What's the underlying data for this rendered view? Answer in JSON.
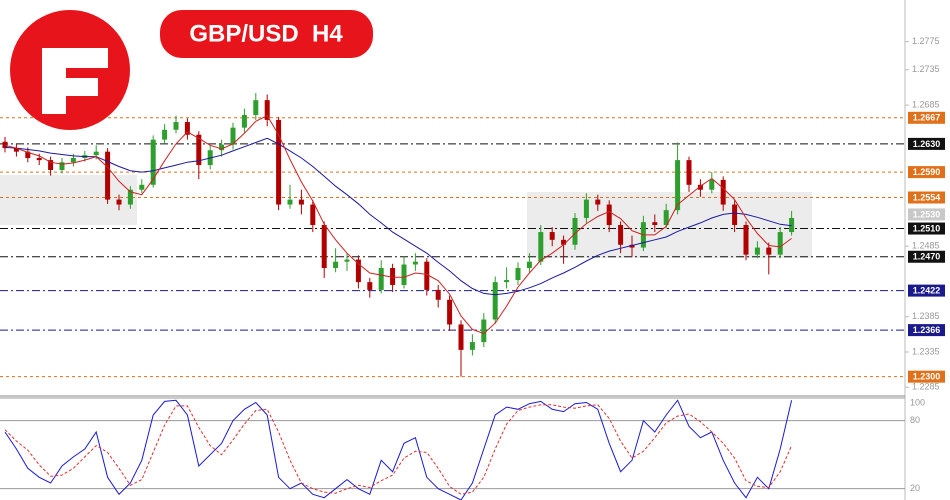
{
  "chart_data": [
    {
      "type": "candlestick",
      "title": "GBP/USD  H4",
      "up_color": "#2e9e2e",
      "down_color": "#b00000",
      "ylim": [
        1.2274,
        1.2834
      ],
      "yticks": [
        1.2775,
        1.2735,
        1.2685,
        1.2485,
        1.2385,
        1.2335,
        1.2285
      ],
      "candles": [
        [
          1.2633,
          1.264,
          1.2618,
          1.2624
        ],
        [
          1.2624,
          1.263,
          1.2612,
          1.2619
        ],
        [
          1.2619,
          1.2625,
          1.2604,
          1.261
        ],
        [
          1.261,
          1.2616,
          1.26,
          1.2607
        ],
        [
          1.2607,
          1.2612,
          1.2585,
          1.2593
        ],
        [
          1.2593,
          1.261,
          1.2588,
          1.2604
        ],
        [
          1.2604,
          1.2616,
          1.2598,
          1.261
        ],
        [
          1.261,
          1.262,
          1.2605,
          1.2614
        ],
        [
          1.2614,
          1.2628,
          1.2608,
          1.2619
        ],
        [
          1.2619,
          1.2624,
          1.2545,
          1.2551
        ],
        [
          1.2551,
          1.2558,
          1.2536,
          1.2544
        ],
        [
          1.2544,
          1.257,
          1.2538,
          1.2565
        ],
        [
          1.2565,
          1.258,
          1.256,
          1.2572
        ],
        [
          1.2572,
          1.2642,
          1.2568,
          1.2636
        ],
        [
          1.2636,
          1.2658,
          1.263,
          1.265
        ],
        [
          1.265,
          1.267,
          1.2645,
          1.2661
        ],
        [
          1.2661,
          1.2666,
          1.2636,
          1.2643
        ],
        [
          1.2643,
          1.2648,
          1.258,
          1.26
        ],
        [
          1.26,
          1.2628,
          1.2594,
          1.2621
        ],
        [
          1.2621,
          1.2636,
          1.2612,
          1.2629
        ],
        [
          1.2629,
          1.266,
          1.2622,
          1.2653
        ],
        [
          1.2653,
          1.268,
          1.2646,
          1.2671
        ],
        [
          1.2671,
          1.2702,
          1.2664,
          1.2692
        ],
        [
          1.2692,
          1.27,
          1.2655,
          1.2664
        ],
        [
          1.2664,
          1.2668,
          1.2536,
          1.2544
        ],
        [
          1.2544,
          1.2572,
          1.2538,
          1.2551
        ],
        [
          1.2551,
          1.2565,
          1.253,
          1.2544
        ],
        [
          1.2544,
          1.255,
          1.2505,
          1.2515
        ],
        [
          1.2515,
          1.252,
          1.244,
          1.2454
        ],
        [
          1.2454,
          1.2482,
          1.2448,
          1.2463
        ],
        [
          1.2463,
          1.2475,
          1.245,
          1.2466
        ],
        [
          1.2466,
          1.2472,
          1.2425,
          1.2434
        ],
        [
          1.2434,
          1.244,
          1.2412,
          1.2423
        ],
        [
          1.2423,
          1.2465,
          1.2418,
          1.2454
        ],
        [
          1.2454,
          1.246,
          1.242,
          1.243
        ],
        [
          1.243,
          1.247,
          1.2425,
          1.2459
        ],
        [
          1.2459,
          1.2475,
          1.245,
          1.2463
        ],
        [
          1.2463,
          1.2468,
          1.2415,
          1.2423
        ],
        [
          1.2423,
          1.243,
          1.2398,
          1.2409
        ],
        [
          1.2409,
          1.2415,
          1.2365,
          1.2374
        ],
        [
          1.2374,
          1.238,
          1.23,
          1.2338
        ],
        [
          1.2338,
          1.236,
          1.233,
          1.2349
        ],
        [
          1.2349,
          1.239,
          1.2342,
          1.2381
        ],
        [
          1.2381,
          1.2442,
          1.2375,
          1.2434
        ],
        [
          1.2434,
          1.2455,
          1.2425,
          1.2437
        ],
        [
          1.2437,
          1.2462,
          1.243,
          1.2454
        ],
        [
          1.2454,
          1.2475,
          1.2448,
          1.2463
        ],
        [
          1.2463,
          1.2515,
          1.2458,
          1.2505
        ],
        [
          1.2505,
          1.2512,
          1.2485,
          1.2494
        ],
        [
          1.2494,
          1.25,
          1.246,
          1.2487
        ],
        [
          1.2487,
          1.2532,
          1.248,
          1.2525
        ],
        [
          1.2525,
          1.256,
          1.2518,
          1.2551
        ],
        [
          1.2551,
          1.2558,
          1.2535,
          1.2544
        ],
        [
          1.2544,
          1.255,
          1.2505,
          1.2515
        ],
        [
          1.2515,
          1.252,
          1.2475,
          1.2487
        ],
        [
          1.2487,
          1.25,
          1.247,
          1.2483
        ],
        [
          1.2483,
          1.2528,
          1.2478,
          1.2519
        ],
        [
          1.2519,
          1.253,
          1.2505,
          1.2515
        ],
        [
          1.2515,
          1.2545,
          1.251,
          1.2536
        ],
        [
          1.2536,
          1.2632,
          1.253,
          1.2607
        ],
        [
          1.2607,
          1.2612,
          1.2562,
          1.2572
        ],
        [
          1.2572,
          1.258,
          1.2555,
          1.2565
        ],
        [
          1.2565,
          1.259,
          1.256,
          1.2579
        ],
        [
          1.2579,
          1.2584,
          1.2535,
          1.2544
        ],
        [
          1.2544,
          1.255,
          1.2505,
          1.2515
        ],
        [
          1.2515,
          1.252,
          1.2465,
          1.2473
        ],
        [
          1.2473,
          1.2492,
          1.2468,
          1.2483
        ],
        [
          1.2483,
          1.249,
          1.2445,
          1.2473
        ],
        [
          1.2473,
          1.2512,
          1.2468,
          1.2505
        ],
        [
          1.2505,
          1.2535,
          1.25,
          1.2525
        ]
      ],
      "ma_slow": {
        "color": "#1a1aa0",
        "values": [
          1.2625,
          1.2624,
          1.2622,
          1.262,
          1.2617,
          1.2615,
          1.2613,
          1.2612,
          1.2612,
          1.2605,
          1.2598,
          1.2592,
          1.259,
          1.2592,
          1.2596,
          1.26,
          1.2604,
          1.2606,
          1.261,
          1.2614,
          1.262,
          1.2626,
          1.2632,
          1.2638,
          1.263,
          1.262,
          1.261,
          1.2598,
          1.2584,
          1.257,
          1.2558,
          1.2545,
          1.253,
          1.2518,
          1.2505,
          1.2495,
          1.2485,
          1.2475,
          1.2462,
          1.245,
          1.2436,
          1.2425,
          1.2418,
          1.2416,
          1.2418,
          1.2421,
          1.2426,
          1.2432,
          1.244,
          1.2447,
          1.2455,
          1.2464,
          1.2472,
          1.2478,
          1.2482,
          1.2486,
          1.249,
          1.2494,
          1.2498,
          1.2506,
          1.2512,
          1.2518,
          1.2525,
          1.253,
          1.2532,
          1.253,
          1.2526,
          1.2521,
          1.2516,
          1.2514
        ]
      },
      "ma_fast": {
        "color": "#d02020",
        "values": [
          1.2628,
          1.2624,
          1.2618,
          1.2613,
          1.2604,
          1.2601,
          1.2603,
          1.2607,
          1.2612,
          1.2597,
          1.2577,
          1.2562,
          1.2558,
          1.258,
          1.2606,
          1.263,
          1.2647,
          1.2638,
          1.2628,
          1.2623,
          1.263,
          1.2645,
          1.2662,
          1.267,
          1.2643,
          1.2608,
          1.2576,
          1.2549,
          1.2516,
          1.2494,
          1.2475,
          1.246,
          1.2447,
          1.2444,
          1.2441,
          1.2441,
          1.2447,
          1.2445,
          1.2436,
          1.2417,
          1.2386,
          1.2367,
          1.2361,
          1.2376,
          1.24,
          1.2427,
          1.2447,
          1.2465,
          1.2475,
          1.2487,
          1.2503,
          1.2517,
          1.2527,
          1.2534,
          1.2524,
          1.2507,
          1.2501,
          1.2501,
          1.2513,
          1.2544,
          1.2557,
          1.257,
          1.2581,
          1.2567,
          1.2551,
          1.2525,
          1.2503,
          1.2486,
          1.2484,
          1.2496
        ]
      },
      "levels": [
        {
          "value": 1.2667,
          "label": "1.2667",
          "color": "#e0701a",
          "dash": "3,3"
        },
        {
          "value": 1.263,
          "label": "1.2630",
          "color": "#111111",
          "dash": "8,3,2,3"
        },
        {
          "value": 1.259,
          "label": "1.2590",
          "color": "#e0701a",
          "dash": "3,3"
        },
        {
          "value": 1.2554,
          "label": "1.2554",
          "color": "#e0701a",
          "dash": "3,3"
        },
        {
          "value": 1.251,
          "label": "1.2510",
          "color": "#111111",
          "dash": "8,3,2,3"
        },
        {
          "value": 1.247,
          "label": "1.2470",
          "color": "#111111",
          "dash": "8,3,2,3"
        },
        {
          "value": 1.2422,
          "label": "1.2422",
          "color": "#1a1a8c",
          "dash": "8,3,2,3"
        },
        {
          "value": 1.2366,
          "label": "1.2366",
          "color": "#1a1a8c",
          "dash": "8,3,2,3"
        },
        {
          "value": 1.23,
          "label": "1.2300",
          "color": "#e0701a",
          "dash": "3,3"
        }
      ],
      "current_price": {
        "value": 1.253,
        "label": "1.2530",
        "color": "#c8c8c8"
      }
    },
    {
      "type": "oscillator",
      "ylim": [
        10,
        100
      ],
      "yticks": [
        100,
        80,
        20
      ],
      "grid": true,
      "series": [
        {
          "color": "#1a1ad0",
          "values": [
            70,
            55,
            38,
            30,
            25,
            40,
            48,
            55,
            70,
            30,
            15,
            25,
            45,
            85,
            97,
            98,
            85,
            40,
            50,
            60,
            80,
            90,
            96,
            85,
            30,
            20,
            25,
            15,
            12,
            20,
            28,
            20,
            15,
            45,
            35,
            60,
            65,
            30,
            20,
            15,
            10,
            25,
            55,
            85,
            92,
            90,
            95,
            97,
            90,
            88,
            95,
            96,
            90,
            60,
            35,
            45,
            80,
            70,
            85,
            98,
            75,
            65,
            70,
            45,
            25,
            12,
            30,
            20,
            55,
            98
          ]
        },
        {
          "color": "#e03030",
          "values": [
            72,
            62,
            54,
            41,
            31,
            32,
            38,
            48,
            58,
            52,
            38,
            23,
            28,
            52,
            76,
            93,
            93,
            74,
            58,
            50,
            63,
            77,
            89,
            90,
            70,
            45,
            25,
            20,
            17,
            16,
            20,
            23,
            21,
            27,
            32,
            47,
            53,
            52,
            38,
            22,
            15,
            17,
            30,
            55,
            77,
            89,
            92,
            94,
            94,
            92,
            91,
            93,
            94,
            82,
            62,
            47,
            53,
            65,
            78,
            84,
            86,
            79,
            70,
            60,
            47,
            27,
            22,
            21,
            35,
            58
          ]
        }
      ]
    }
  ]
}
